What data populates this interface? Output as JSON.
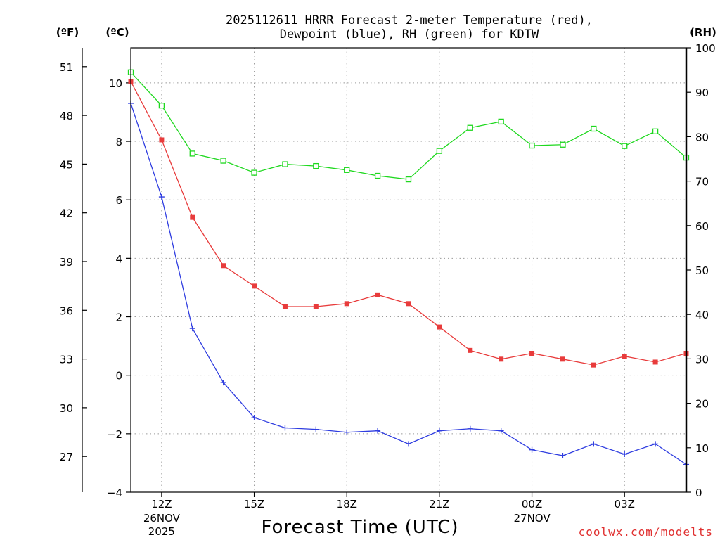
{
  "chart_data": {
    "type": "line",
    "title_lines": [
      "2025112611 HRRR Forecast 2-meter Temperature (red),",
      "Dewpoint (blue), RH (green) for KDTW"
    ],
    "xlabel": "Forecast Time (UTC)",
    "units": {
      "fahrenheit": "(ºF)",
      "celsius": "(ºC)",
      "rh": "(RH)"
    },
    "credit": "coolwx.com/modelts",
    "x_hours": [
      11,
      12,
      13,
      14,
      15,
      16,
      17,
      18,
      19,
      20,
      21,
      22,
      23,
      24,
      25,
      26,
      27,
      28,
      29
    ],
    "xlim": [
      11,
      29
    ],
    "x_ticks": [
      {
        "hour": 12,
        "label": "12Z",
        "sub": [
          "26NOV",
          "2025"
        ]
      },
      {
        "hour": 15,
        "label": "15Z",
        "sub": []
      },
      {
        "hour": 18,
        "label": "18Z",
        "sub": []
      },
      {
        "hour": 21,
        "label": "21Z",
        "sub": []
      },
      {
        "hour": 24,
        "label": "00Z",
        "sub": [
          "27NOV"
        ]
      },
      {
        "hour": 27,
        "label": "03Z",
        "sub": []
      }
    ],
    "celsius_axis": {
      "ylim": [
        -4,
        11.2
      ],
      "ticks": [
        -4,
        -2,
        0,
        2,
        4,
        6,
        8,
        10
      ],
      "tick_labels": [
        "−4",
        "−2",
        "0",
        "2",
        "4",
        "6",
        "8",
        "10"
      ]
    },
    "fahrenheit_axis": {
      "ticks": [
        27,
        30,
        33,
        36,
        39,
        42,
        45,
        48,
        51
      ],
      "tick_labels": [
        "27",
        "30",
        "33",
        "36",
        "39",
        "42",
        "45",
        "48",
        "51"
      ]
    },
    "rh_axis": {
      "ylim": [
        0,
        100
      ],
      "ticks": [
        0,
        10,
        20,
        30,
        40,
        50,
        60,
        70,
        80,
        90,
        100
      ],
      "tick_labels": [
        "0",
        "10",
        "20",
        "30",
        "40",
        "50",
        "60",
        "70",
        "80",
        "90",
        "100"
      ]
    },
    "grid": true,
    "series": [
      {
        "name": "Temperature",
        "axis": "celsius",
        "color": "#e83b3b",
        "marker": "filled-square",
        "values": [
          10.05,
          8.05,
          5.4,
          3.75,
          3.05,
          2.35,
          2.35,
          2.45,
          2.75,
          2.45,
          1.65,
          0.85,
          0.55,
          0.75,
          0.55,
          0.35,
          0.65,
          0.45,
          0.75
        ]
      },
      {
        "name": "Dewpoint",
        "axis": "celsius",
        "color": "#2f3de0",
        "marker": "plus",
        "values": [
          9.3,
          6.1,
          1.6,
          -0.25,
          -1.45,
          -1.8,
          -1.85,
          -1.95,
          -1.9,
          -2.35,
          -1.9,
          -1.83,
          -1.9,
          -2.55,
          -2.75,
          -2.35,
          -2.7,
          -2.35,
          -3.05
        ]
      },
      {
        "name": "RH",
        "axis": "rh",
        "color": "#1ed81e",
        "marker": "open-square",
        "values": [
          94.5,
          87.0,
          76.2,
          74.6,
          71.9,
          73.8,
          73.4,
          72.5,
          71.2,
          70.4,
          76.8,
          82.0,
          83.4,
          78.0,
          78.2,
          81.8,
          77.9,
          81.2,
          75.3
        ]
      }
    ]
  }
}
